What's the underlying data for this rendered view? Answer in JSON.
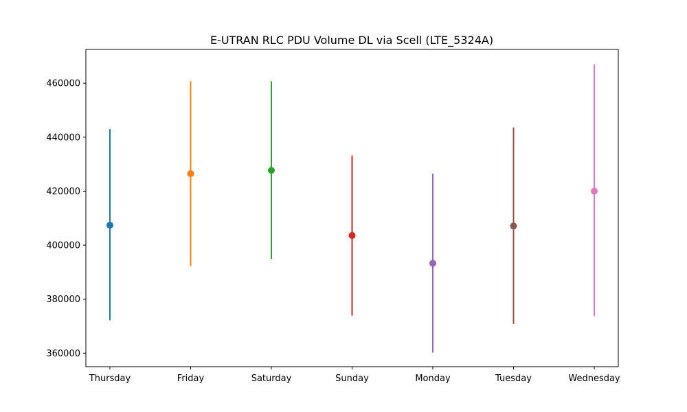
{
  "chart_data": {
    "type": "errorbar",
    "title": "E-UTRAN RLC PDU Volume DL via Scell (LTE_5324A)",
    "xlabel": "",
    "ylabel": "",
    "categories": [
      "Thursday",
      "Friday",
      "Saturday",
      "Sunday",
      "Monday",
      "Tuesday",
      "Wednesday"
    ],
    "values": [
      407400,
      426500,
      427700,
      403600,
      393300,
      407100,
      420000
    ],
    "lower": [
      372200,
      392300,
      394900,
      373900,
      360200,
      370800,
      373700
    ],
    "upper": [
      443000,
      460700,
      460700,
      433200,
      426500,
      443600,
      467000
    ],
    "colors": [
      "#1f77b4",
      "#ff7f0e",
      "#2ca02c",
      "#d62728",
      "#9467bd",
      "#8c564b",
      "#e377c2"
    ],
    "ylim": [
      355000,
      472500
    ],
    "yticks": [
      360000,
      380000,
      400000,
      420000,
      440000,
      460000
    ],
    "grid": false
  }
}
